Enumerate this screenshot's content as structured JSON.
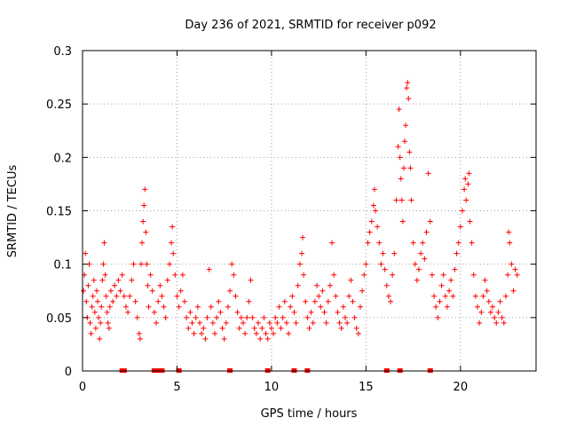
{
  "chart_data": {
    "type": "scatter",
    "title": "Day 236 of 2021, SRMTID for receiver p092",
    "xlabel": "GPS time / hours",
    "ylabel": "SRMTID / TECUs",
    "xlim": [
      0,
      24
    ],
    "ylim": [
      0,
      0.3
    ],
    "x_ticks": [
      0,
      5,
      10,
      15,
      20
    ],
    "x_tick_labels": [
      "0",
      "5",
      "10",
      "15",
      "20"
    ],
    "y_ticks": [
      0,
      0.05,
      0.1,
      0.15,
      0.2,
      0.25,
      0.3
    ],
    "y_tick_labels": [
      "0",
      "0.05",
      "0.1",
      "0.15",
      "0.2",
      "0.25",
      "0.3"
    ],
    "grid": true,
    "marker": "plus",
    "color": "#ff0000",
    "series": [
      {
        "name": "SRMTID",
        "points": [
          [
            0.05,
            0.075
          ],
          [
            0.1,
            0.09
          ],
          [
            0.15,
            0.11
          ],
          [
            0.2,
            0.065
          ],
          [
            0.25,
            0.05
          ],
          [
            0.3,
            0.08
          ],
          [
            0.35,
            0.1
          ],
          [
            0.4,
            0.045
          ],
          [
            0.45,
            0.035
          ],
          [
            0.5,
            0.06
          ],
          [
            0.55,
            0.07
          ],
          [
            0.6,
            0.085
          ],
          [
            0.65,
            0.055
          ],
          [
            0.7,
            0.04
          ],
          [
            0.75,
            0.075
          ],
          [
            0.8,
            0.065
          ],
          [
            0.85,
            0.05
          ],
          [
            0.9,
            0.03
          ],
          [
            0.95,
            0.045
          ],
          [
            1.0,
            0.06
          ],
          [
            1.05,
            0.085
          ],
          [
            1.1,
            0.1
          ],
          [
            1.15,
            0.12
          ],
          [
            1.2,
            0.09
          ],
          [
            1.25,
            0.07
          ],
          [
            1.3,
            0.055
          ],
          [
            1.35,
            0.045
          ],
          [
            1.4,
            0.04
          ],
          [
            1.45,
            0.06
          ],
          [
            1.5,
            0.075
          ],
          [
            1.6,
            0.065
          ],
          [
            1.7,
            0.08
          ],
          [
            1.8,
            0.07
          ],
          [
            1.9,
            0.085
          ],
          [
            2.0,
            0.075
          ],
          [
            2.1,
            0.09
          ],
          [
            2.2,
            0.07
          ],
          [
            2.3,
            0.06
          ],
          [
            2.4,
            0.055
          ],
          [
            2.5,
            0.07
          ],
          [
            2.6,
            0.085
          ],
          [
            2.7,
            0.1
          ],
          [
            2.8,
            0.065
          ],
          [
            2.9,
            0.05
          ],
          [
            3.0,
            0.035
          ],
          [
            3.05,
            0.03
          ],
          [
            3.1,
            0.1
          ],
          [
            3.15,
            0.12
          ],
          [
            3.2,
            0.14
          ],
          [
            3.25,
            0.155
          ],
          [
            3.3,
            0.17
          ],
          [
            3.35,
            0.13
          ],
          [
            3.4,
            0.1
          ],
          [
            3.45,
            0.08
          ],
          [
            3.5,
            0.06
          ],
          [
            3.6,
            0.09
          ],
          [
            3.7,
            0.075
          ],
          [
            3.8,
            0.055
          ],
          [
            3.9,
            0.045
          ],
          [
            4.0,
            0.065
          ],
          [
            4.1,
            0.08
          ],
          [
            4.2,
            0.07
          ],
          [
            4.3,
            0.06
          ],
          [
            4.4,
            0.05
          ],
          [
            4.5,
            0.085
          ],
          [
            4.6,
            0.1
          ],
          [
            4.7,
            0.12
          ],
          [
            4.75,
            0.135
          ],
          [
            4.8,
            0.11
          ],
          [
            4.9,
            0.09
          ],
          [
            5.0,
            0.07
          ],
          [
            5.1,
            0.06
          ],
          [
            5.2,
            0.075
          ],
          [
            5.3,
            0.09
          ],
          [
            5.4,
            0.065
          ],
          [
            5.5,
            0.05
          ],
          [
            5.6,
            0.04
          ],
          [
            5.7,
            0.055
          ],
          [
            5.8,
            0.045
          ],
          [
            5.9,
            0.035
          ],
          [
            6.0,
            0.05
          ],
          [
            6.1,
            0.06
          ],
          [
            6.2,
            0.045
          ],
          [
            6.3,
            0.035
          ],
          [
            6.4,
            0.04
          ],
          [
            6.5,
            0.03
          ],
          [
            6.6,
            0.05
          ],
          [
            6.7,
            0.095
          ],
          [
            6.8,
            0.06
          ],
          [
            6.9,
            0.045
          ],
          [
            7.0,
            0.035
          ],
          [
            7.1,
            0.05
          ],
          [
            7.2,
            0.065
          ],
          [
            7.3,
            0.055
          ],
          [
            7.4,
            0.04
          ],
          [
            7.5,
            0.03
          ],
          [
            7.6,
            0.045
          ],
          [
            7.7,
            0.06
          ],
          [
            7.8,
            0.075
          ],
          [
            7.9,
            0.1
          ],
          [
            8.0,
            0.09
          ],
          [
            8.1,
            0.07
          ],
          [
            8.2,
            0.055
          ],
          [
            8.3,
            0.04
          ],
          [
            8.4,
            0.05
          ],
          [
            8.5,
            0.045
          ],
          [
            8.6,
            0.035
          ],
          [
            8.7,
            0.05
          ],
          [
            8.8,
            0.065
          ],
          [
            8.9,
            0.085
          ],
          [
            9.0,
            0.05
          ],
          [
            9.1,
            0.04
          ],
          [
            9.2,
            0.035
          ],
          [
            9.3,
            0.045
          ],
          [
            9.4,
            0.03
          ],
          [
            9.5,
            0.04
          ],
          [
            9.6,
            0.05
          ],
          [
            9.7,
            0.035
          ],
          [
            9.8,
            0.03
          ],
          [
            9.9,
            0.045
          ],
          [
            10.0,
            0.04
          ],
          [
            10.1,
            0.035
          ],
          [
            10.2,
            0.05
          ],
          [
            10.3,
            0.045
          ],
          [
            10.4,
            0.06
          ],
          [
            10.5,
            0.04
          ],
          [
            10.6,
            0.05
          ],
          [
            10.7,
            0.065
          ],
          [
            10.8,
            0.045
          ],
          [
            10.9,
            0.035
          ],
          [
            11.0,
            0.06
          ],
          [
            11.1,
            0.07
          ],
          [
            11.2,
            0.055
          ],
          [
            11.3,
            0.045
          ],
          [
            11.4,
            0.08
          ],
          [
            11.5,
            0.1
          ],
          [
            11.6,
            0.11
          ],
          [
            11.65,
            0.125
          ],
          [
            11.7,
            0.09
          ],
          [
            11.8,
            0.065
          ],
          [
            11.9,
            0.05
          ],
          [
            12.0,
            0.04
          ],
          [
            12.1,
            0.055
          ],
          [
            12.2,
            0.045
          ],
          [
            12.3,
            0.065
          ],
          [
            12.4,
            0.08
          ],
          [
            12.5,
            0.07
          ],
          [
            12.6,
            0.06
          ],
          [
            12.7,
            0.075
          ],
          [
            12.8,
            0.055
          ],
          [
            12.9,
            0.045
          ],
          [
            13.0,
            0.065
          ],
          [
            13.1,
            0.08
          ],
          [
            13.2,
            0.12
          ],
          [
            13.3,
            0.09
          ],
          [
            13.4,
            0.07
          ],
          [
            13.5,
            0.055
          ],
          [
            13.6,
            0.045
          ],
          [
            13.7,
            0.04
          ],
          [
            13.8,
            0.06
          ],
          [
            13.9,
            0.05
          ],
          [
            14.0,
            0.045
          ],
          [
            14.1,
            0.07
          ],
          [
            14.2,
            0.085
          ],
          [
            14.3,
            0.065
          ],
          [
            14.4,
            0.05
          ],
          [
            14.5,
            0.04
          ],
          [
            14.6,
            0.035
          ],
          [
            14.7,
            0.06
          ],
          [
            14.8,
            0.075
          ],
          [
            14.9,
            0.09
          ],
          [
            15.0,
            0.1
          ],
          [
            15.1,
            0.12
          ],
          [
            15.2,
            0.13
          ],
          [
            15.3,
            0.14
          ],
          [
            15.4,
            0.155
          ],
          [
            15.45,
            0.17
          ],
          [
            15.5,
            0.15
          ],
          [
            15.6,
            0.135
          ],
          [
            15.7,
            0.12
          ],
          [
            15.8,
            0.1
          ],
          [
            15.9,
            0.11
          ],
          [
            16.0,
            0.095
          ],
          [
            16.1,
            0.08
          ],
          [
            16.2,
            0.07
          ],
          [
            16.3,
            0.065
          ],
          [
            16.4,
            0.09
          ],
          [
            16.5,
            0.11
          ],
          [
            16.6,
            0.16
          ],
          [
            16.7,
            0.21
          ],
          [
            16.75,
            0.245
          ],
          [
            16.8,
            0.2
          ],
          [
            16.85,
            0.18
          ],
          [
            16.9,
            0.16
          ],
          [
            16.95,
            0.14
          ],
          [
            17.0,
            0.19
          ],
          [
            17.05,
            0.215
          ],
          [
            17.1,
            0.23
          ],
          [
            17.15,
            0.265
          ],
          [
            17.2,
            0.27
          ],
          [
            17.25,
            0.255
          ],
          [
            17.3,
            0.205
          ],
          [
            17.35,
            0.19
          ],
          [
            17.4,
            0.16
          ],
          [
            17.5,
            0.12
          ],
          [
            17.6,
            0.1
          ],
          [
            17.7,
            0.085
          ],
          [
            17.8,
            0.095
          ],
          [
            17.9,
            0.11
          ],
          [
            18.0,
            0.12
          ],
          [
            18.1,
            0.105
          ],
          [
            18.2,
            0.13
          ],
          [
            18.3,
            0.185
          ],
          [
            18.4,
            0.14
          ],
          [
            18.5,
            0.09
          ],
          [
            18.6,
            0.07
          ],
          [
            18.7,
            0.06
          ],
          [
            18.8,
            0.05
          ],
          [
            18.9,
            0.065
          ],
          [
            19.0,
            0.08
          ],
          [
            19.1,
            0.09
          ],
          [
            19.2,
            0.07
          ],
          [
            19.3,
            0.06
          ],
          [
            19.4,
            0.075
          ],
          [
            19.5,
            0.085
          ],
          [
            19.6,
            0.07
          ],
          [
            19.7,
            0.095
          ],
          [
            19.8,
            0.11
          ],
          [
            19.9,
            0.12
          ],
          [
            20.0,
            0.135
          ],
          [
            20.1,
            0.15
          ],
          [
            20.2,
            0.17
          ],
          [
            20.25,
            0.18
          ],
          [
            20.3,
            0.16
          ],
          [
            20.4,
            0.175
          ],
          [
            20.45,
            0.185
          ],
          [
            20.5,
            0.14
          ],
          [
            20.6,
            0.12
          ],
          [
            20.7,
            0.09
          ],
          [
            20.8,
            0.07
          ],
          [
            20.9,
            0.06
          ],
          [
            21.0,
            0.045
          ],
          [
            21.1,
            0.055
          ],
          [
            21.2,
            0.07
          ],
          [
            21.3,
            0.085
          ],
          [
            21.4,
            0.075
          ],
          [
            21.5,
            0.065
          ],
          [
            21.6,
            0.055
          ],
          [
            21.7,
            0.06
          ],
          [
            21.8,
            0.05
          ],
          [
            21.9,
            0.045
          ],
          [
            22.0,
            0.055
          ],
          [
            22.1,
            0.065
          ],
          [
            22.2,
            0.05
          ],
          [
            22.3,
            0.045
          ],
          [
            22.4,
            0.07
          ],
          [
            22.5,
            0.09
          ],
          [
            22.55,
            0.13
          ],
          [
            22.6,
            0.12
          ],
          [
            22.7,
            0.1
          ],
          [
            22.8,
            0.075
          ],
          [
            22.9,
            0.095
          ],
          [
            23.0,
            0.09
          ]
        ]
      }
    ],
    "zero_markers_x": [
      2.1,
      2.2,
      3.8,
      3.9,
      4.0,
      4.1,
      4.2,
      5.1,
      7.8,
      9.8,
      11.2,
      11.9,
      16.1,
      16.8,
      18.4
    ]
  }
}
